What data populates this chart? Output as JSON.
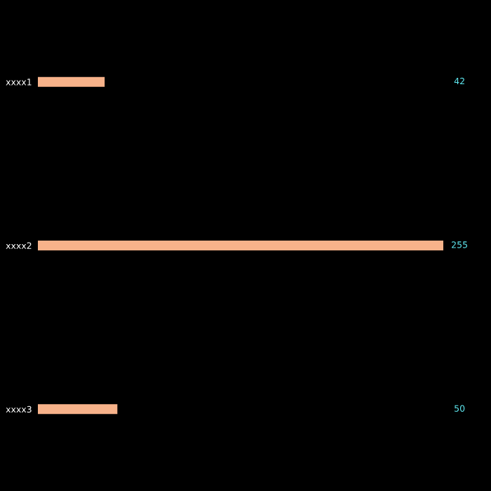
{
  "chart_data": {
    "type": "bar",
    "orientation": "horizontal",
    "categories": [
      "xxxx1",
      "xxxx2",
      "xxxx3"
    ],
    "values": [
      42,
      255,
      50
    ],
    "color": "#f7b28a",
    "data_labels": true,
    "grid": false,
    "legend": false
  }
}
